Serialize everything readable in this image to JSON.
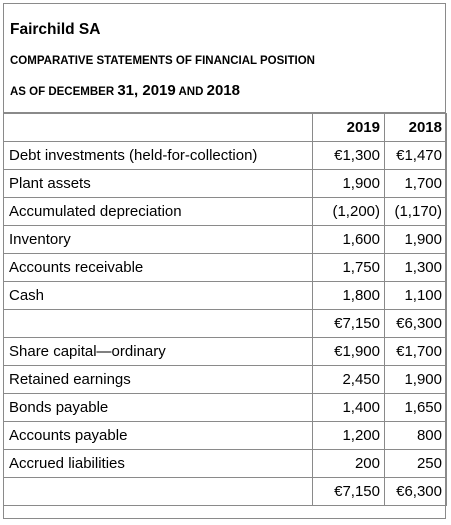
{
  "document": {
    "company": "Fairchild SA",
    "subtitle": "COMPARATIVE STATEMENTS OF FINANCIAL POSITION",
    "asof_prefix": "AS OF DECEMBER ",
    "asof_day": "31, 2019",
    "asof_and": " AND ",
    "asof_year2": "2018"
  },
  "table": {
    "headers": [
      "",
      "2019",
      "2018"
    ],
    "rows": [
      [
        "Debt investments (held-for-collection)",
        "€1,300",
        "€1,470"
      ],
      [
        "Plant assets",
        "1,900",
        "1,700"
      ],
      [
        "Accumulated depreciation",
        "(1,200)",
        "(1,170)"
      ],
      [
        "Inventory",
        "1,600",
        "1,900"
      ],
      [
        "Accounts receivable",
        "1,750",
        "1,300"
      ],
      [
        "Cash",
        "1,800",
        "1,100"
      ],
      [
        "",
        "€7,150",
        "€6,300"
      ],
      [
        "Share capital—ordinary",
        "€1,900",
        "€1,700"
      ],
      [
        "Retained earnings",
        "2,450",
        "1,900"
      ],
      [
        "Bonds payable",
        "1,400",
        "1,650"
      ],
      [
        "Accounts payable",
        "1,200",
        "800"
      ],
      [
        "Accrued liabilities",
        "200",
        "250"
      ],
      [
        "",
        "€7,150",
        "€6,300"
      ]
    ]
  }
}
